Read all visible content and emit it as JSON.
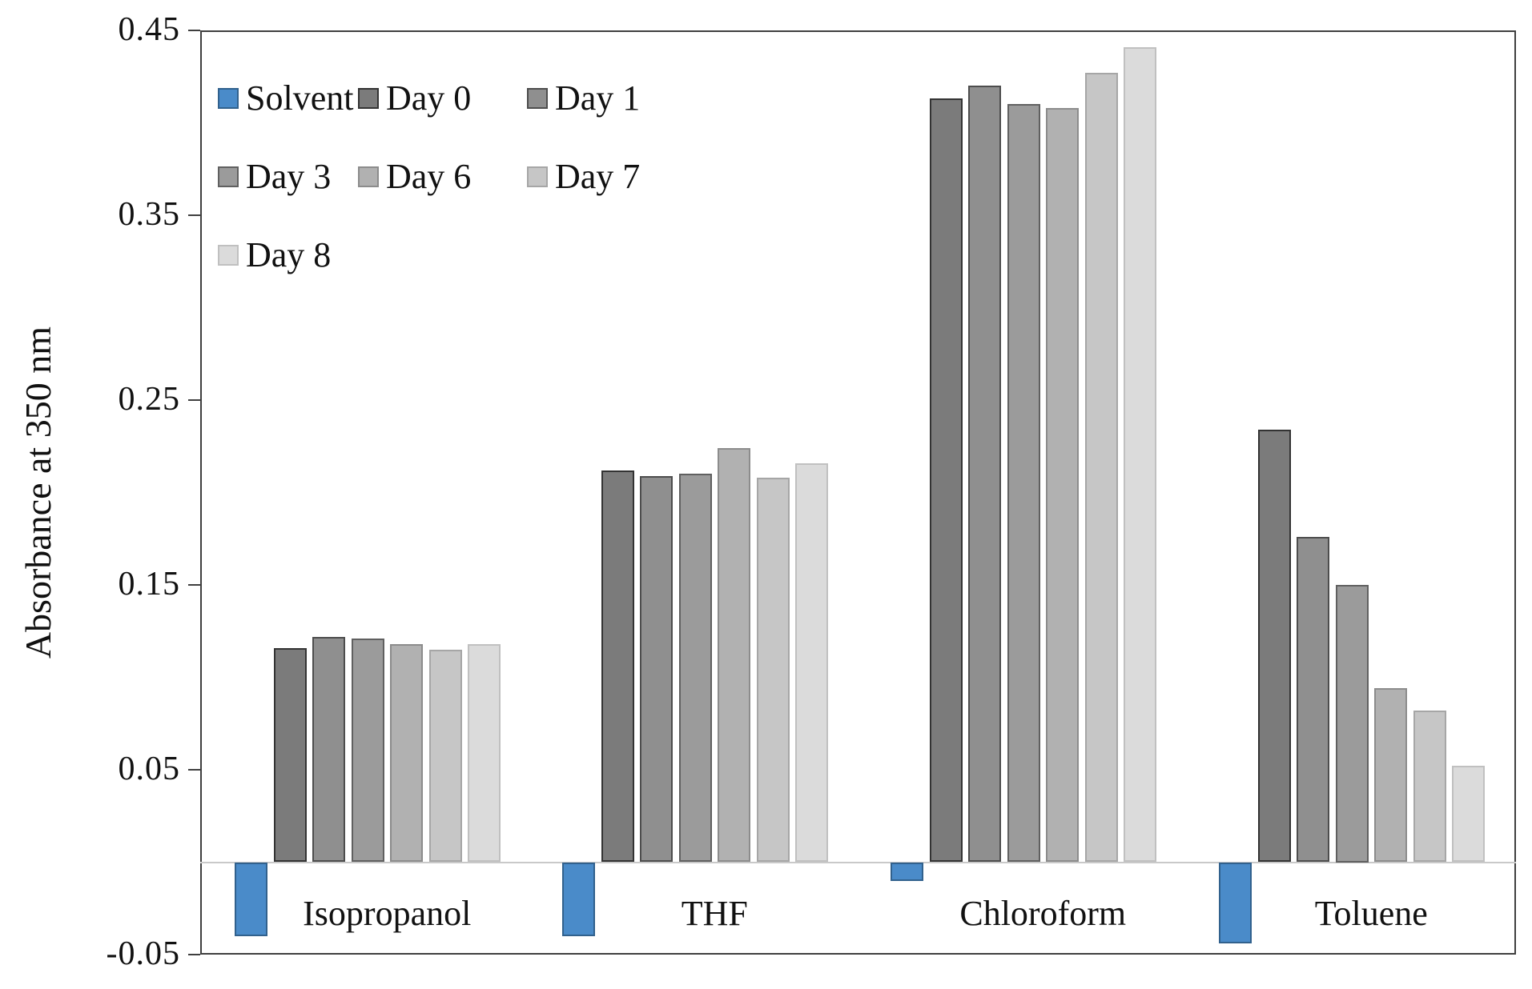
{
  "chart_data": {
    "type": "bar",
    "title": "",
    "xlabel": "",
    "ylabel": "Absorbance at 350 nm",
    "categories": [
      "Isopropanol",
      "THF",
      "Chloroform",
      "Toluene"
    ],
    "series": [
      {
        "name": "Solvent",
        "fill": "#4a8bc9",
        "border": "#31618d",
        "values": [
          -0.04,
          -0.04,
          -0.01,
          -0.044
        ]
      },
      {
        "name": "Day 0",
        "fill": "#7b7b7b",
        "border": "#333333",
        "values": [
          0.116,
          0.212,
          0.413,
          0.234
        ]
      },
      {
        "name": "Day 1",
        "fill": "#8f8f8f",
        "border": "#4d4d4d",
        "values": [
          0.122,
          0.209,
          0.42,
          0.176
        ]
      },
      {
        "name": "Day 3",
        "fill": "#9b9b9b",
        "border": "#606060",
        "values": [
          0.121,
          0.21,
          0.41,
          0.15
        ]
      },
      {
        "name": "Day 6",
        "fill": "#b1b1b1",
        "border": "#8c8c8c",
        "values": [
          0.118,
          0.224,
          0.408,
          0.094
        ]
      },
      {
        "name": "Day 7",
        "fill": "#c6c6c6",
        "border": "#a6a6a6",
        "values": [
          0.115,
          0.208,
          0.427,
          0.082
        ]
      },
      {
        "name": "Day 8",
        "fill": "#dbdbdb",
        "border": "#c0c0c0",
        "values": [
          0.118,
          0.216,
          0.441,
          0.052
        ]
      }
    ],
    "y_ticks": [
      0.45,
      0.35,
      0.25,
      0.15,
      0.05,
      -0.05
    ],
    "y_tick_labels": [
      "0.45",
      "0.35",
      "0.25",
      "0.15",
      "0.05",
      "-0.05"
    ],
    "ylim": [
      -0.05,
      0.45
    ],
    "grid": false,
    "legend_position": "top-left-inside",
    "axis_color": "#3f3f3f",
    "baseline_color": "#c9c9c9"
  }
}
